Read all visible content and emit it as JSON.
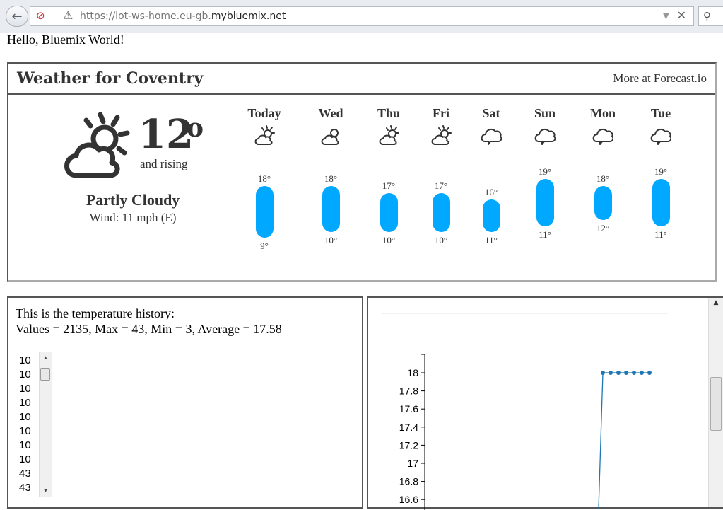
{
  "browser": {
    "url_prefix": "https://iot-ws-home.eu-gb.",
    "url_domain": "mybluemix.net"
  },
  "page": {
    "hello": "Hello, Bluemix World!"
  },
  "weather": {
    "title": "Weather for Coventry",
    "more_at": "More at",
    "more_link": "Forecast.io",
    "current": {
      "temp": "12",
      "deg": "o",
      "trend": "and rising",
      "summary": "Partly Cloudy",
      "wind": "Wind: 11 mph (E)",
      "icon": "partly-cloudy-icon"
    },
    "days": [
      {
        "name": "Today",
        "hi": "18°",
        "lo": "9°",
        "icon": "partly-cloudy-icon",
        "hi_v": 18,
        "lo_v": 9
      },
      {
        "name": "Wed",
        "hi": "18°",
        "lo": "10°",
        "icon": "cloudy-sun-icon",
        "hi_v": 18,
        "lo_v": 10
      },
      {
        "name": "Thu",
        "hi": "17°",
        "lo": "10°",
        "icon": "partly-cloudy-icon",
        "hi_v": 17,
        "lo_v": 10
      },
      {
        "name": "Fri",
        "hi": "17°",
        "lo": "10°",
        "icon": "partly-cloudy-icon",
        "hi_v": 17,
        "lo_v": 10
      },
      {
        "name": "Sat",
        "hi": "16°",
        "lo": "11°",
        "icon": "cloud-icon",
        "hi_v": 16,
        "lo_v": 11
      },
      {
        "name": "Sun",
        "hi": "19°",
        "lo": "11°",
        "icon": "cloud-icon",
        "hi_v": 19,
        "lo_v": 11
      },
      {
        "name": "Mon",
        "hi": "18°",
        "lo": "12°",
        "icon": "cloud-icon",
        "hi_v": 18,
        "lo_v": 12
      },
      {
        "name": "Tue",
        "hi": "19°",
        "lo": "11°",
        "icon": "cloud-icon",
        "hi_v": 19,
        "lo_v": 11
      }
    ],
    "bar_color": "#00a8ff"
  },
  "history": {
    "line1": "This is the temperature history:",
    "line2": "Values = 2135, Max = 43, Min = 3, Average = 17.58",
    "values": [
      "10",
      "10",
      "10",
      "10",
      "10",
      "10",
      "10",
      "10",
      "43",
      "43"
    ]
  },
  "chart_data": {
    "type": "line",
    "y_ticks": [
      "18",
      "17.8",
      "17.6",
      "17.4",
      "17.2",
      "17",
      "16.8",
      "16.6"
    ],
    "ylim": [
      16.6,
      18.1
    ],
    "series": [
      {
        "values": [
          16.5,
          18,
          18,
          18,
          18,
          18,
          18,
          18,
          18
        ]
      }
    ],
    "color": "#1f77b4"
  }
}
